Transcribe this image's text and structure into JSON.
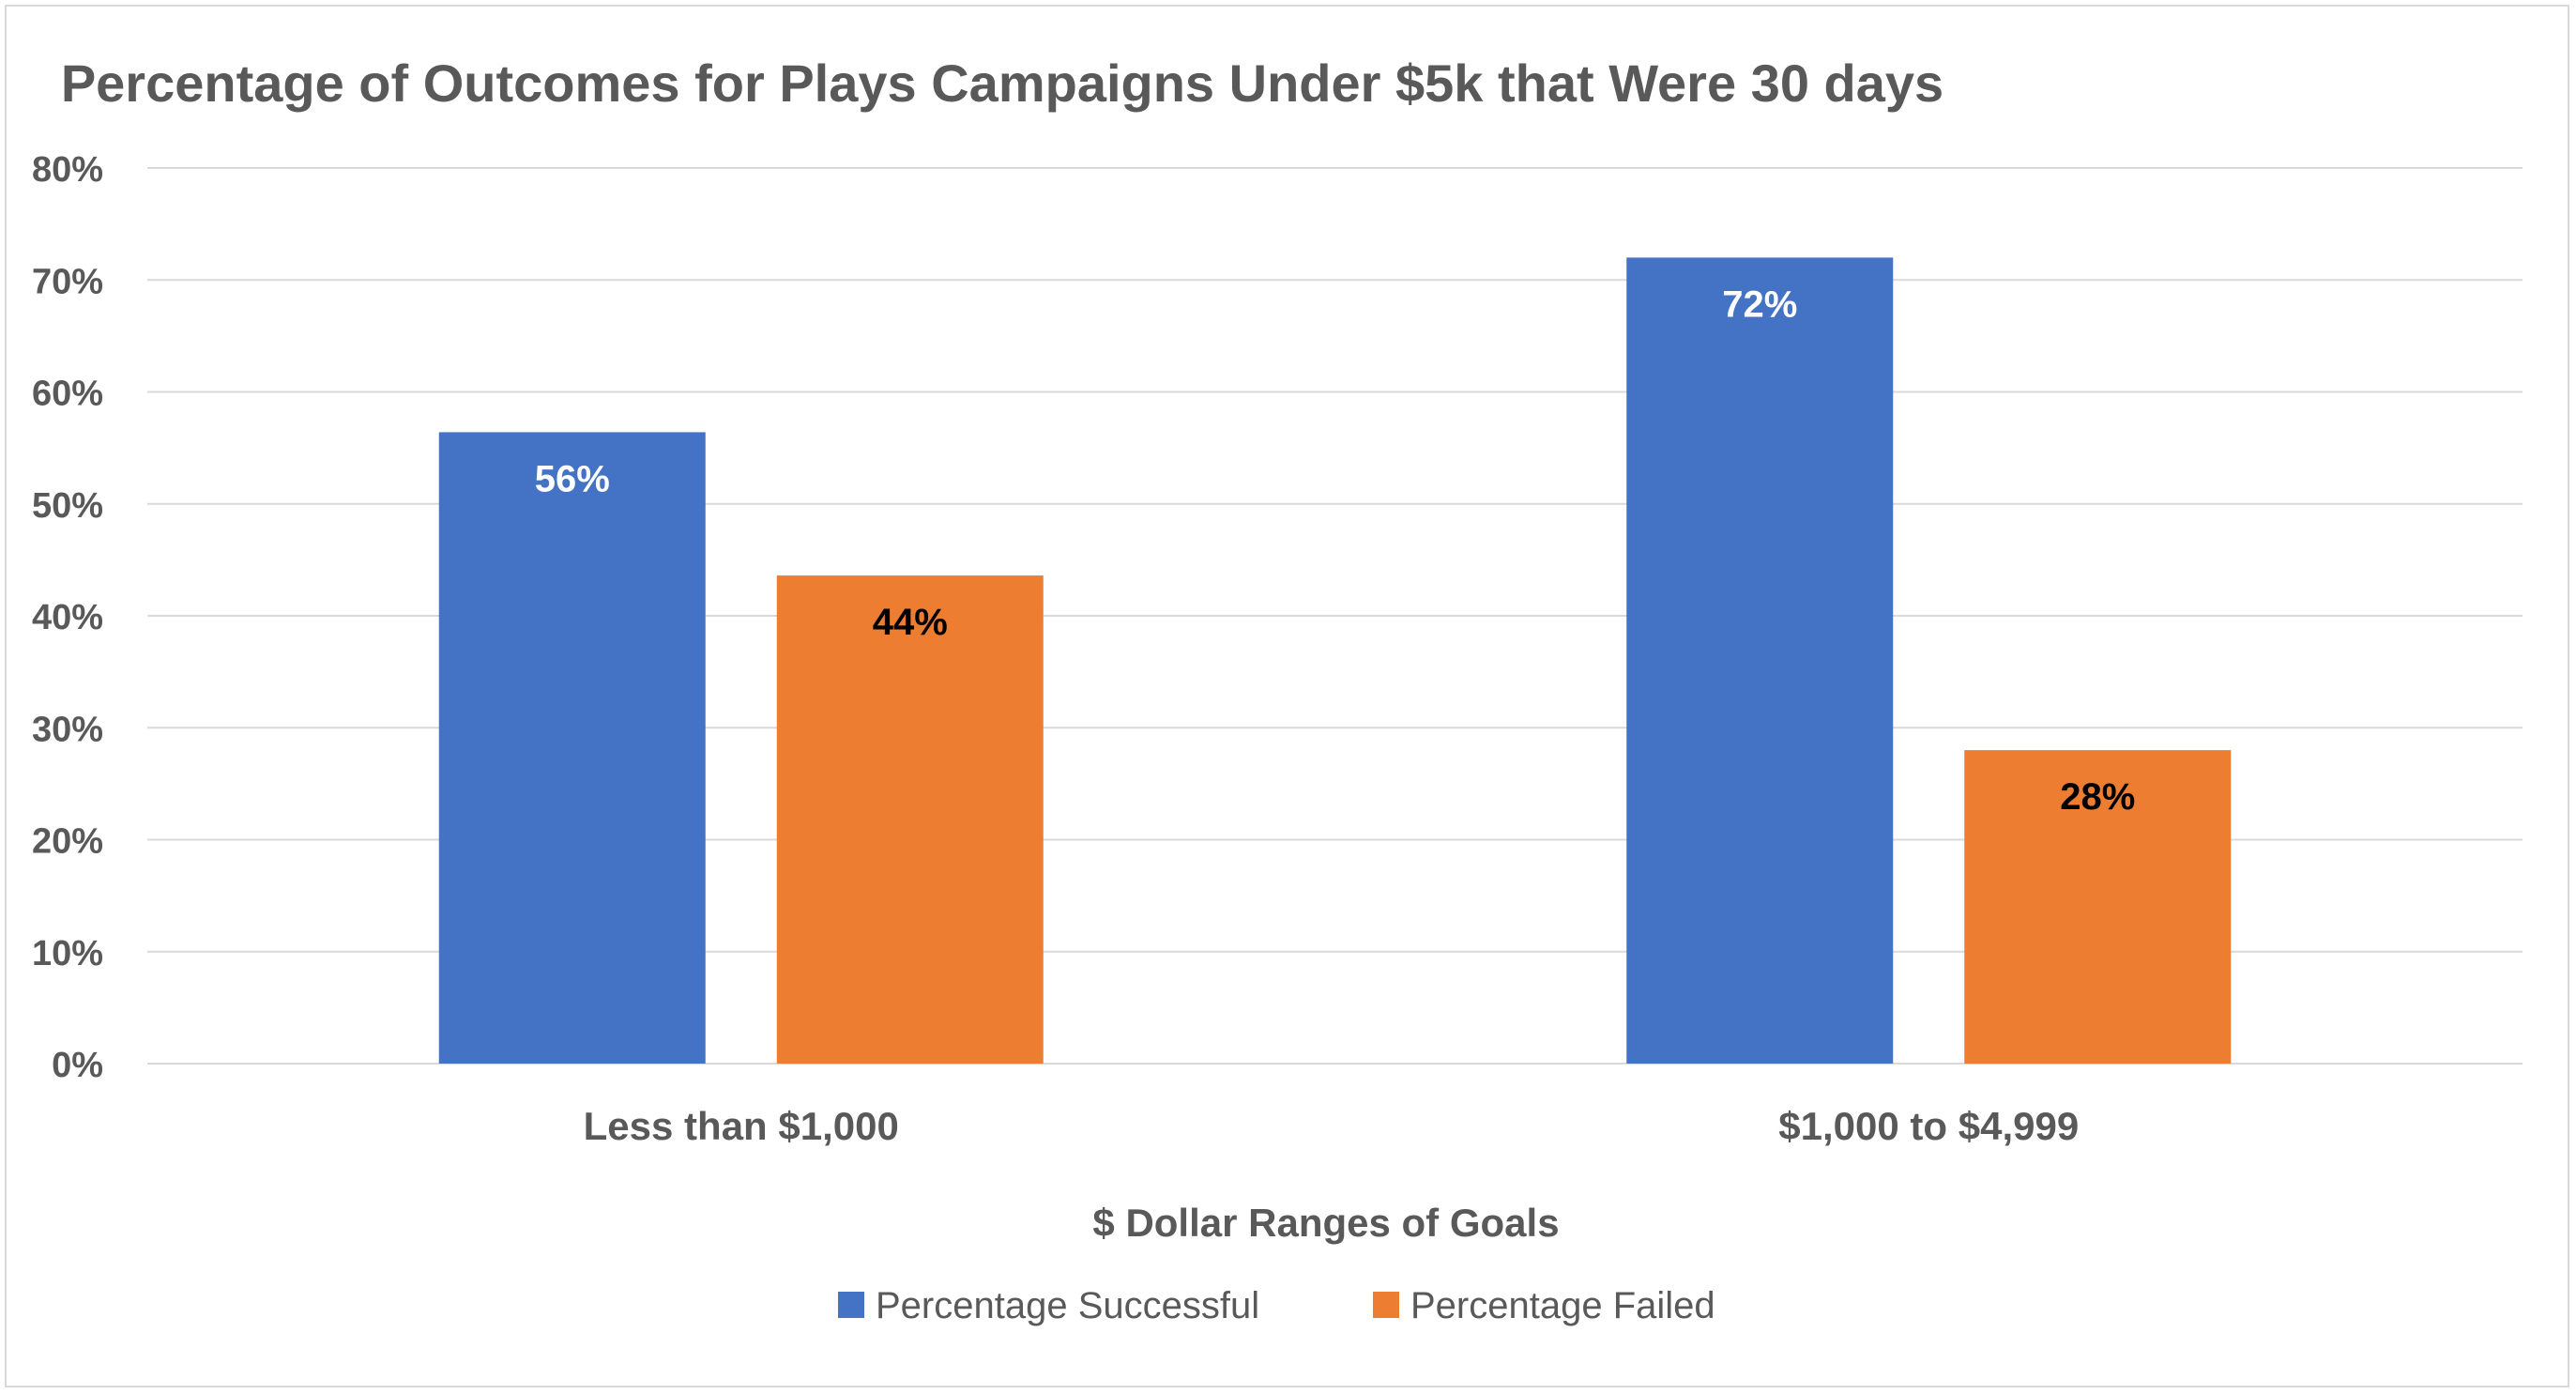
{
  "chart_data": {
    "type": "bar",
    "title": "Percentage of Outcomes for Plays Campaigns Under $5k that Were 30 days",
    "xlabel": "$ Dollar Ranges of Goals",
    "ylabel": "",
    "categories": [
      "Less than $1,000",
      "$1,000 to $4,999"
    ],
    "series": [
      {
        "name": "Percentage Successful",
        "color": "#4472c4",
        "label_color": "#ffffff",
        "values": [
          56.4,
          72.0
        ],
        "labels": [
          "56%",
          "72%"
        ]
      },
      {
        "name": "Percentage Failed",
        "color": "#ed7d31",
        "label_color": "#000000",
        "values": [
          43.6,
          28.0
        ],
        "labels": [
          "44%",
          "28%"
        ]
      }
    ],
    "ylim": [
      0,
      80
    ],
    "yticks": [
      0,
      10,
      20,
      30,
      40,
      50,
      60,
      70,
      80
    ],
    "ytick_labels": [
      "0%",
      "10%",
      "20%",
      "30%",
      "40%",
      "50%",
      "60%",
      "70%",
      "80%"
    ],
    "grid": true,
    "grid_color": "#d9d9d9",
    "text_color": "#595959",
    "legend_position": "bottom"
  }
}
